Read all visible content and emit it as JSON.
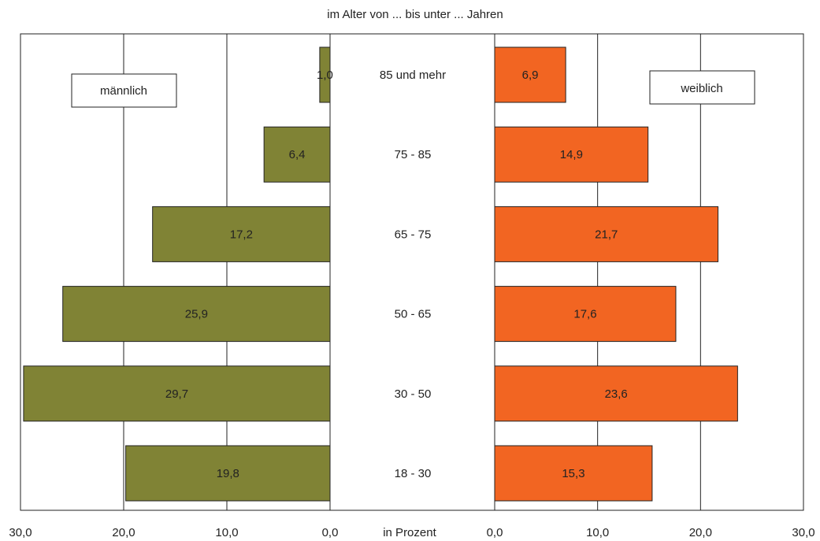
{
  "chart_data": {
    "type": "bar",
    "subtitle": "im Alter von ... bis unter ... Jahren",
    "xlabel": "in Prozent",
    "categories": [
      "85 und mehr",
      "75 - 85",
      "65 - 75",
      "50 - 65",
      "30 - 50",
      "18 - 30"
    ],
    "series": [
      {
        "name": "männlich",
        "side": "left",
        "color": "#808335",
        "values": [
          1.0,
          6.4,
          17.2,
          25.9,
          29.7,
          19.8
        ],
        "value_labels": [
          "1,0",
          "6,4",
          "17,2",
          "25,9",
          "29,7",
          "19,8"
        ]
      },
      {
        "name": "weiblich",
        "side": "right",
        "color": "#f26522",
        "values": [
          6.9,
          14.9,
          21.7,
          17.6,
          23.6,
          15.3
        ],
        "value_labels": [
          "6,9",
          "14,9",
          "21,7",
          "17,6",
          "23,6",
          "15,3"
        ]
      }
    ],
    "xlim": [
      0,
      30
    ],
    "ticks": [
      30,
      20,
      10,
      0
    ],
    "left_tick_labels": [
      "30,0",
      "20,0",
      "10,0",
      "0,0"
    ],
    "right_tick_labels": [
      "0,0",
      "10,0",
      "20,0",
      "30,0"
    ],
    "grid": true,
    "legend_placement": "top-left / top-right boxes"
  }
}
